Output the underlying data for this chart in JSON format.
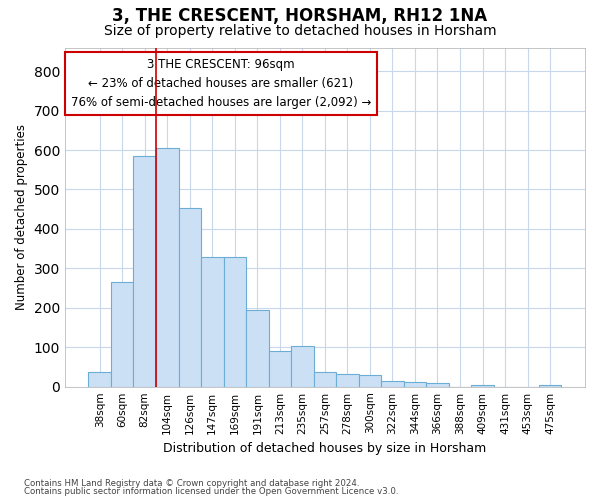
{
  "title": "3, THE CRESCENT, HORSHAM, RH12 1NA",
  "subtitle": "Size of property relative to detached houses in Horsham",
  "xlabel": "Distribution of detached houses by size in Horsham",
  "ylabel": "Number of detached properties",
  "categories": [
    "38sqm",
    "60sqm",
    "82sqm",
    "104sqm",
    "126sqm",
    "147sqm",
    "169sqm",
    "191sqm",
    "213sqm",
    "235sqm",
    "257sqm",
    "278sqm",
    "300sqm",
    "322sqm",
    "344sqm",
    "366sqm",
    "388sqm",
    "409sqm",
    "431sqm",
    "453sqm",
    "475sqm"
  ],
  "values": [
    38,
    265,
    585,
    605,
    453,
    330,
    330,
    195,
    90,
    102,
    38,
    33,
    30,
    15,
    13,
    10,
    0,
    5,
    0,
    0,
    5
  ],
  "bar_color": "#cce0f5",
  "bar_edge_color": "#6aaed6",
  "grid_color": "#c8d8ea",
  "annotation_line1": "3 THE CRESCENT: 96sqm",
  "annotation_line2": "← 23% of detached houses are smaller (621)",
  "annotation_line3": "76% of semi-detached houses are larger (2,092) →",
  "annotation_box_color": "#cc0000",
  "vline_color": "#cc0000",
  "vline_x": 2.5,
  "ylim": [
    0,
    860
  ],
  "yticks": [
    0,
    100,
    200,
    300,
    400,
    500,
    600,
    700,
    800
  ],
  "footer_line1": "Contains HM Land Registry data © Crown copyright and database right 2024.",
  "footer_line2": "Contains public sector information licensed under the Open Government Licence v3.0.",
  "bg_color": "#ffffff",
  "plot_bg_color": "#ffffff",
  "title_fontsize": 12,
  "subtitle_fontsize": 10
}
